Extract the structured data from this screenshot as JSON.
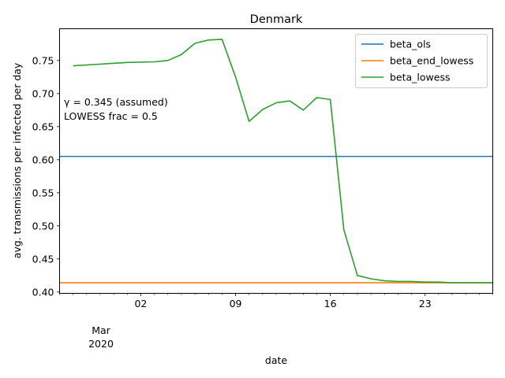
{
  "chart_data": {
    "type": "line",
    "title": "Denmark",
    "xlabel": "date",
    "ylabel": "avg. transmissions per infected per day",
    "xlim": [
      "2020-02-25",
      "2020-03-28"
    ],
    "ylim": [
      0.398,
      0.798
    ],
    "x_major_ticks": [
      {
        "date": "2020-03-02",
        "label": "02"
      },
      {
        "date": "2020-03-09",
        "label": "09"
      },
      {
        "date": "2020-03-16",
        "label": "16"
      },
      {
        "date": "2020-03-23",
        "label": "23"
      }
    ],
    "x_minor_ticks": [
      "2020-02-25",
      "2020-02-26",
      "2020-02-27",
      "2020-02-28",
      "2020-02-29",
      "2020-03-01",
      "2020-03-03",
      "2020-03-04",
      "2020-03-05",
      "2020-03-06",
      "2020-03-07",
      "2020-03-08",
      "2020-03-10",
      "2020-03-11",
      "2020-03-12",
      "2020-03-13",
      "2020-03-14",
      "2020-03-15",
      "2020-03-17",
      "2020-03-18",
      "2020-03-19",
      "2020-03-20",
      "2020-03-21",
      "2020-03-22",
      "2020-03-24",
      "2020-03-25",
      "2020-03-26",
      "2020-03-27",
      "2020-03-28"
    ],
    "x_secondary_label": {
      "month": "Mar",
      "year": "2020"
    },
    "y_ticks": [
      {
        "value": 0.4,
        "label": "0.40"
      },
      {
        "value": 0.45,
        "label": "0.45"
      },
      {
        "value": 0.5,
        "label": "0.50"
      },
      {
        "value": 0.55,
        "label": "0.55"
      },
      {
        "value": 0.6,
        "label": "0.60"
      },
      {
        "value": 0.65,
        "label": "0.65"
      },
      {
        "value": 0.7,
        "label": "0.70"
      },
      {
        "value": 0.75,
        "label": "0.75"
      }
    ],
    "grid": false,
    "legend_position": "top-right",
    "annotations": [
      "γ = 0.345 (assumed)",
      "LOWESS frac = 0.5"
    ],
    "series": [
      {
        "name": "beta_ols",
        "color": "#1f77b4",
        "style": "hline",
        "y": 0.605
      },
      {
        "name": "beta_end_lowess",
        "color": "#ff7f0e",
        "style": "hline",
        "y": 0.414
      },
      {
        "name": "beta_lowess",
        "color": "#2ca02c",
        "style": "line",
        "x": [
          "2020-02-26",
          "2020-03-01",
          "2020-03-03",
          "2020-03-04",
          "2020-03-05",
          "2020-03-06",
          "2020-03-07",
          "2020-03-08",
          "2020-03-09",
          "2020-03-10",
          "2020-03-11",
          "2020-03-12",
          "2020-03-13",
          "2020-03-14",
          "2020-03-15",
          "2020-03-16",
          "2020-03-17",
          "2020-03-18",
          "2020-03-19",
          "2020-03-20",
          "2020-03-21",
          "2020-03-22",
          "2020-03-23",
          "2020-03-24",
          "2020-03-25",
          "2020-03-26",
          "2020-03-27",
          "2020-03-28"
        ],
        "y": [
          0.742,
          0.747,
          0.748,
          0.75,
          0.759,
          0.776,
          0.781,
          0.782,
          0.725,
          0.658,
          0.676,
          0.686,
          0.689,
          0.675,
          0.694,
          0.691,
          0.494,
          0.425,
          0.42,
          0.417,
          0.416,
          0.416,
          0.415,
          0.415,
          0.414,
          0.414,
          0.414,
          0.414
        ]
      }
    ]
  }
}
